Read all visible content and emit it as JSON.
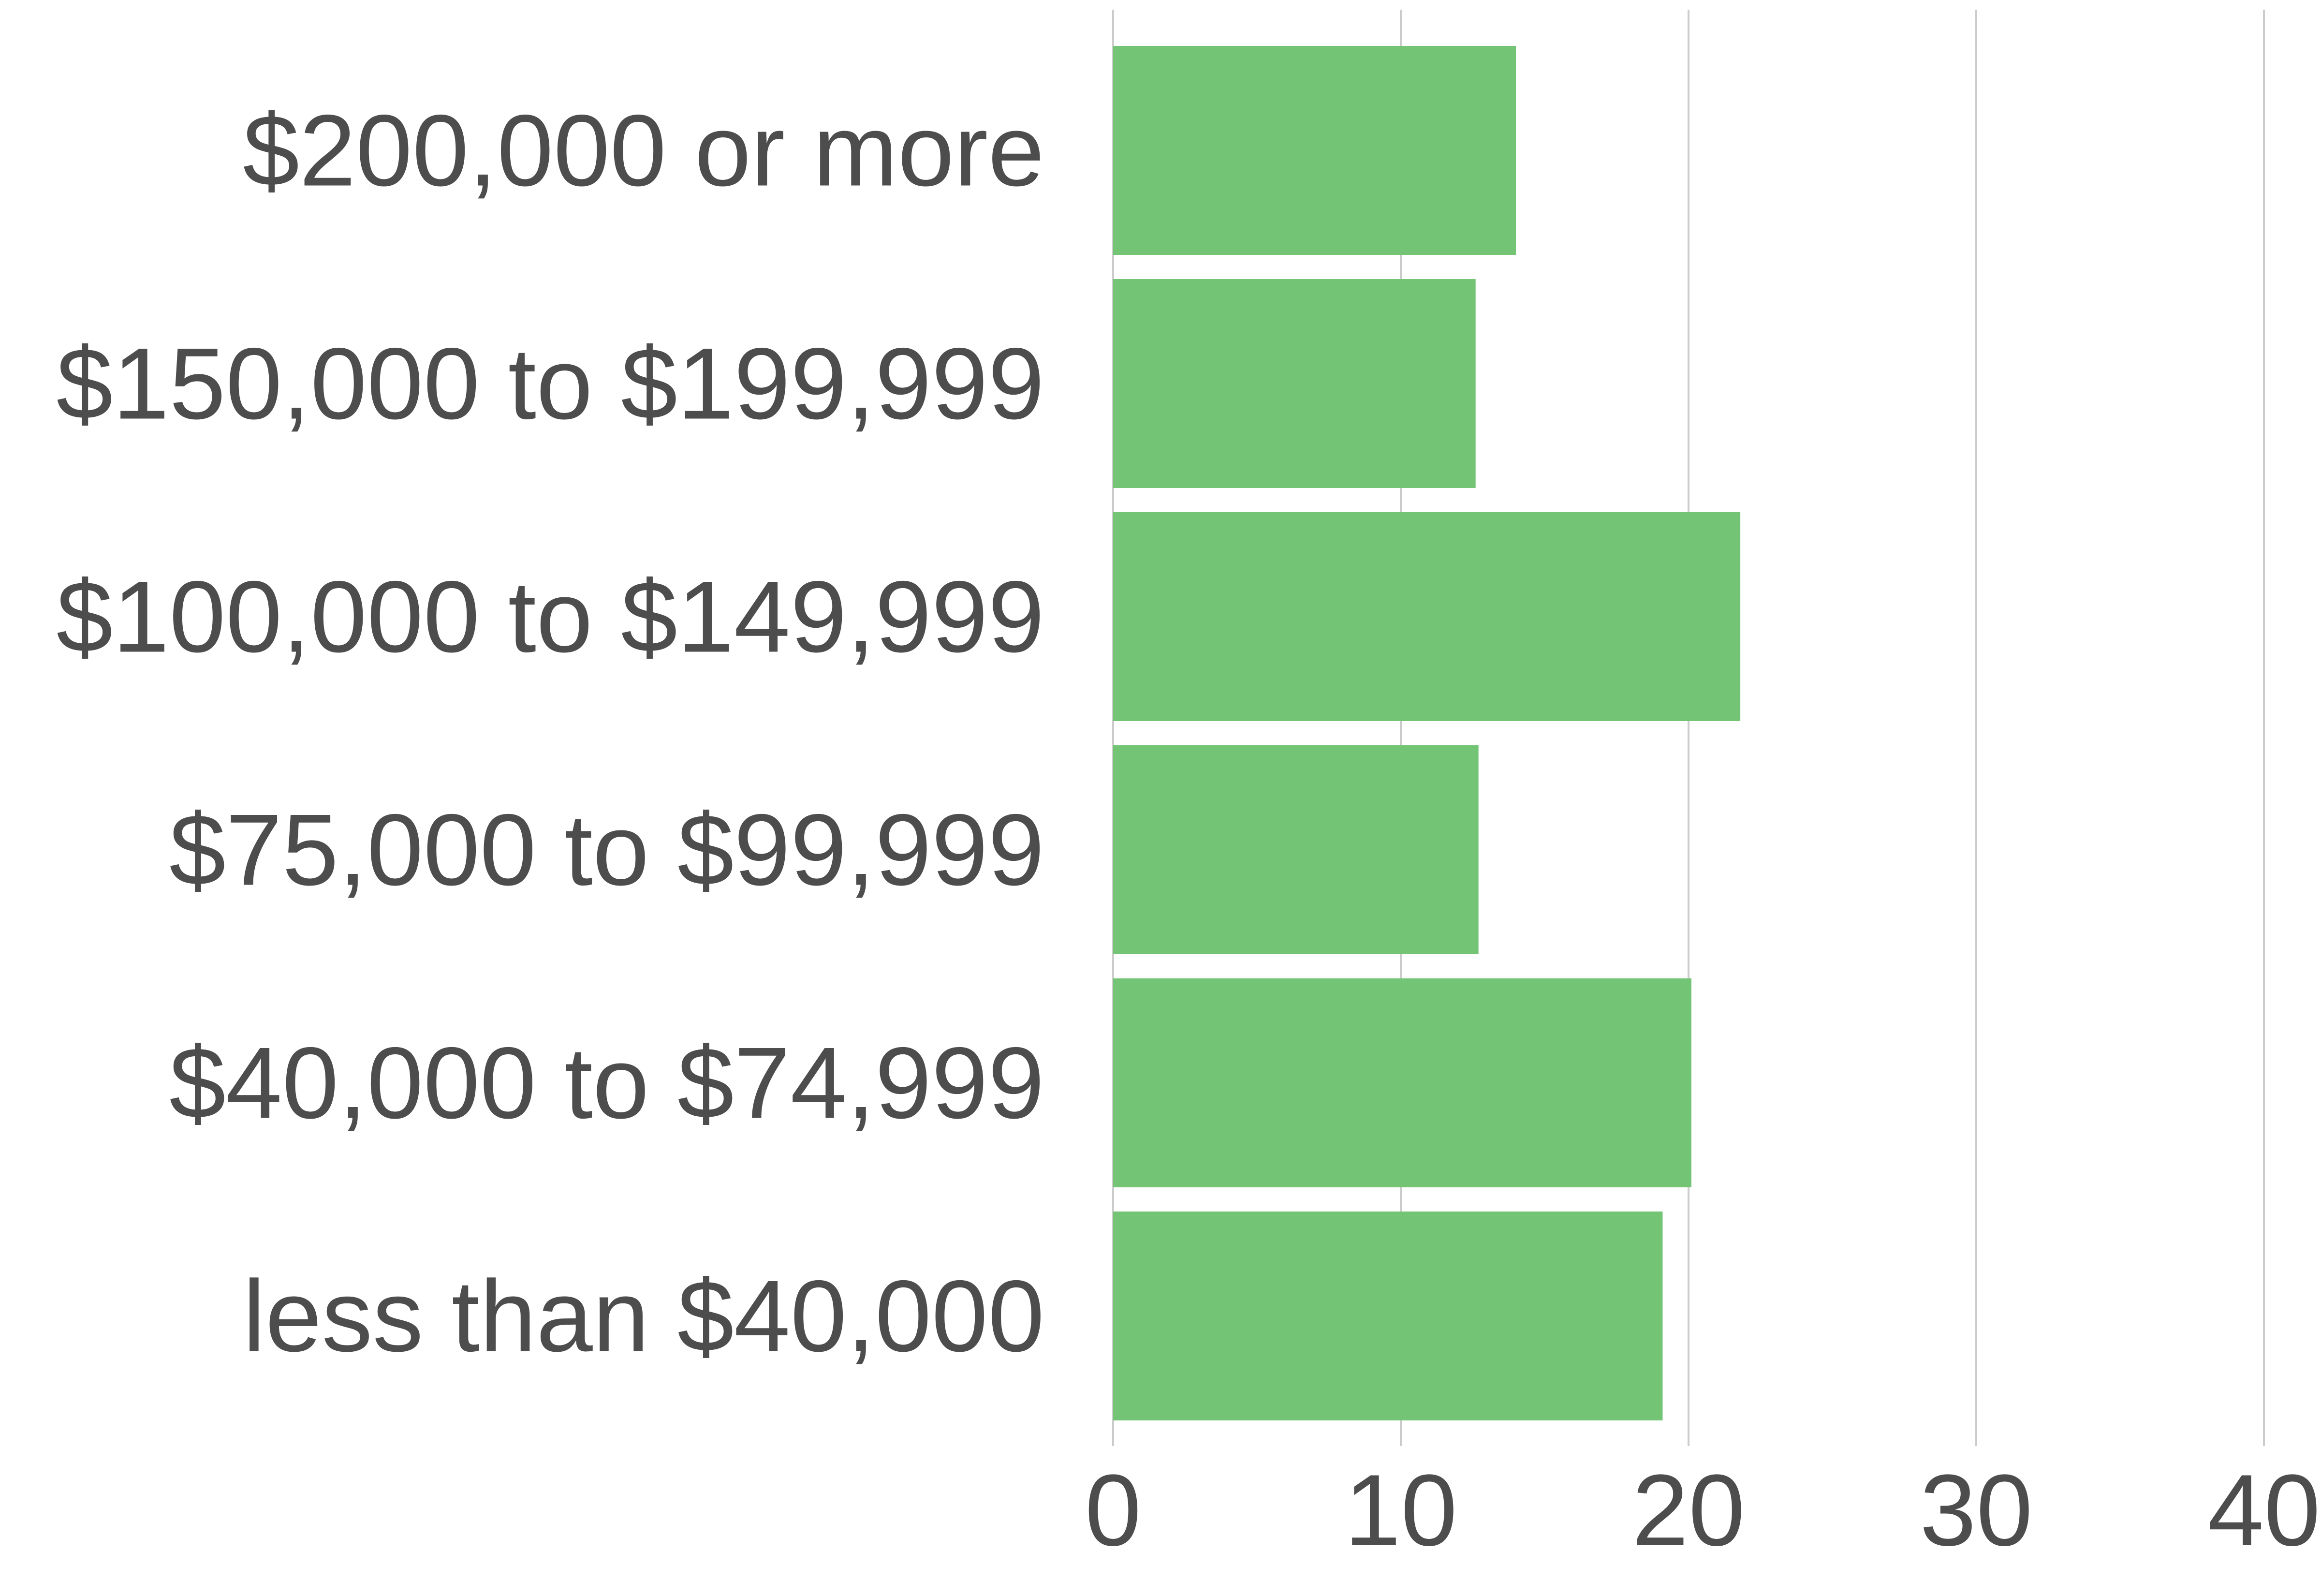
{
  "chart_data": {
    "type": "bar",
    "orientation": "horizontal",
    "title": "",
    "xlabel": "",
    "ylabel": "",
    "categories": [
      "$200,000 or more",
      "$150,000 to $199,999",
      "$100,000 to $149,999",
      "$75,000 to $99,999",
      "$40,000 to $74,999",
      "less than $40,000"
    ],
    "values": [
      14,
      12.6,
      21.8,
      12.7,
      20.1,
      19.1
    ],
    "xlim": [
      0,
      40
    ],
    "xticks": [
      0,
      10,
      20,
      30,
      40
    ],
    "grid": "vertical",
    "legend": "none",
    "bar_color": "#74c476",
    "text_color": "#4d4d4d",
    "grid_color": "#cccccc"
  }
}
